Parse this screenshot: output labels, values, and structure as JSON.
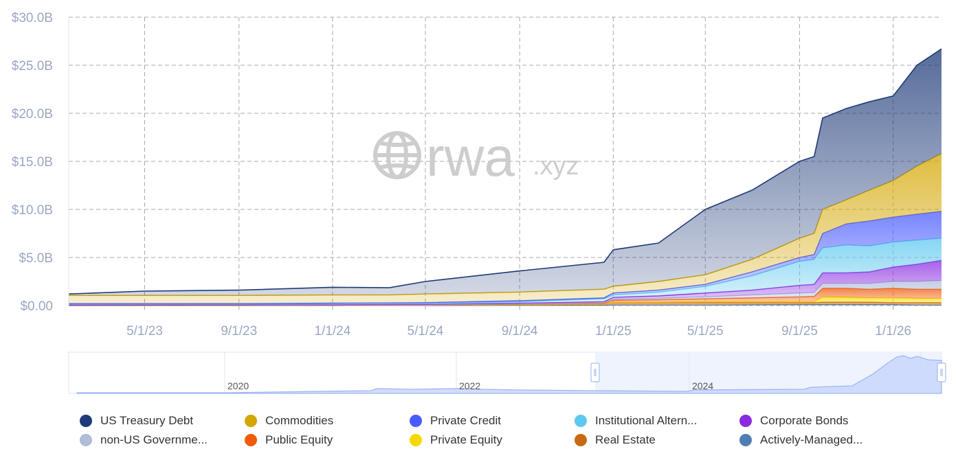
{
  "watermark": {
    "logo_text": "rwa",
    "logo_suffix": ".xyz"
  },
  "slider": {
    "labels": [
      "2020",
      "2022",
      "2024"
    ]
  },
  "chart_data": {
    "type": "area",
    "stacked": true,
    "title": "",
    "xlabel": "",
    "ylabel": "",
    "ylim": [
      0,
      30
    ],
    "y_unit": "USD billions",
    "y_ticks": [
      "$0.00",
      "$5.0B",
      "$10.0B",
      "$15.0B",
      "$20.0B",
      "$25.0B",
      "$30.0B"
    ],
    "y_tick_values": [
      0,
      5,
      10,
      15,
      20,
      25,
      30
    ],
    "x_range": [
      "2023-01-22",
      "2026-03-05"
    ],
    "x_ticks": [
      "5/1/23",
      "9/1/23",
      "1/1/24",
      "5/1/24",
      "9/1/24",
      "1/1/25",
      "5/1/25",
      "9/1/25",
      "1/1/26"
    ],
    "x_tick_dates": [
      "2023-05-01",
      "2023-09-01",
      "2024-01-01",
      "2024-05-01",
      "2024-09-01",
      "2025-01-01",
      "2025-05-01",
      "2025-09-01",
      "2026-01-01"
    ],
    "grid": true,
    "legend_position": "bottom",
    "x": [
      "2023-01-22",
      "2023-05-01",
      "2023-09-01",
      "2024-01-01",
      "2024-03-15",
      "2024-05-01",
      "2024-09-01",
      "2024-12-20",
      "2025-01-01",
      "2025-03-01",
      "2025-05-01",
      "2025-07-01",
      "2025-09-01",
      "2025-09-20",
      "2025-10-01",
      "2025-11-01",
      "2025-12-01",
      "2026-01-01",
      "2026-02-01",
      "2026-03-05"
    ],
    "series": [
      {
        "name": "Actively-Managed...",
        "color": "#4f7db3",
        "values": [
          0,
          0,
          0,
          0,
          0.01,
          0.01,
          0.02,
          0.03,
          0.05,
          0.05,
          0.05,
          0.08,
          0.1,
          0.1,
          0.1,
          0.1,
          0.1,
          0.1,
          0.05,
          0.05
        ]
      },
      {
        "name": "Real Estate",
        "color": "#c86a10",
        "values": [
          0.01,
          0.01,
          0.01,
          0.02,
          0.02,
          0.03,
          0.08,
          0.09,
          0.25,
          0.25,
          0.25,
          0.22,
          0.2,
          0.2,
          0.25,
          0.25,
          0.25,
          0.2,
          0.25,
          0.25
        ]
      },
      {
        "name": "Private Equity",
        "color": "#f5d800",
        "values": [
          0,
          0,
          0,
          0,
          0,
          0,
          0,
          0.02,
          0.05,
          0.05,
          0.1,
          0.1,
          0.1,
          0.1,
          0.55,
          0.5,
          0.45,
          0.5,
          0.45,
          0.45
        ]
      },
      {
        "name": "Public Equity",
        "color": "#f05a0a",
        "values": [
          0.01,
          0.02,
          0.02,
          0.02,
          0.02,
          0.02,
          0.05,
          0.06,
          0.2,
          0.25,
          0.3,
          0.4,
          0.5,
          0.55,
          0.9,
          0.95,
          0.9,
          1.0,
          0.95,
          0.95
        ]
      },
      {
        "name": "non-US Governme...",
        "color": "#b0bcd8",
        "values": [
          0.02,
          0.02,
          0.02,
          0.02,
          0.02,
          0.02,
          0.05,
          0.1,
          0.1,
          0.15,
          0.2,
          0.3,
          0.4,
          0.4,
          0.5,
          0.5,
          0.6,
          0.7,
          0.8,
          0.9
        ]
      },
      {
        "name": "Corporate Bonds",
        "color": "#8a2be2",
        "values": [
          0.01,
          0.01,
          0.02,
          0.02,
          0.03,
          0.04,
          0.05,
          0.1,
          0.2,
          0.25,
          0.4,
          0.5,
          0.8,
          0.85,
          1.1,
          1.1,
          1.2,
          1.5,
          1.8,
          2.1
        ]
      },
      {
        "name": "Institutional Altern...",
        "color": "#5ec8f0",
        "values": [
          0.1,
          0.09,
          0.08,
          0.12,
          0.12,
          0.13,
          0.15,
          0.3,
          0.25,
          0.4,
          0.7,
          1.5,
          2.5,
          2.6,
          2.6,
          2.9,
          2.7,
          2.6,
          2.5,
          2.3
        ]
      },
      {
        "name": "Private Credit",
        "color": "#4a5cff",
        "values": [
          0.05,
          0.05,
          0.05,
          0.05,
          0.05,
          0.05,
          0.1,
          0.1,
          0.2,
          0.2,
          0.2,
          0.4,
          0.4,
          0.5,
          1.5,
          2.2,
          2.6,
          2.6,
          2.7,
          2.8
        ]
      },
      {
        "name": "Commodities",
        "color": "#d4a600",
        "values": [
          0.85,
          0.85,
          0.85,
          0.85,
          0.83,
          0.9,
          0.9,
          0.9,
          0.7,
          0.9,
          1.0,
          1.3,
          2.0,
          2.2,
          2.5,
          2.5,
          3.2,
          3.8,
          5.0,
          6.0
        ]
      },
      {
        "name": "US Treasury Debt",
        "color": "#1e3a78",
        "values": [
          0.15,
          0.45,
          0.55,
          0.8,
          0.75,
          1.3,
          2.2,
          2.8,
          3.8,
          4.0,
          6.8,
          7.2,
          8.0,
          8.0,
          9.5,
          9.5,
          9.2,
          8.8,
          10.5,
          10.9
        ]
      }
    ],
    "legend": [
      {
        "name": "US Treasury Debt",
        "color": "#1e3a78"
      },
      {
        "name": "Commodities",
        "color": "#d4a600"
      },
      {
        "name": "Private Credit",
        "color": "#4a5cff"
      },
      {
        "name": "Institutional Altern...",
        "color": "#5ec8f0"
      },
      {
        "name": "Corporate Bonds",
        "color": "#8a2be2"
      },
      {
        "name": "non-US Governme...",
        "color": "#b0bcd8"
      },
      {
        "name": "Public Equity",
        "color": "#f05a0a"
      },
      {
        "name": "Private Equity",
        "color": "#f5d800"
      },
      {
        "name": "Real Estate",
        "color": "#c86a10"
      },
      {
        "name": "Actively-Managed...",
        "color": "#4f7db3"
      }
    ]
  }
}
